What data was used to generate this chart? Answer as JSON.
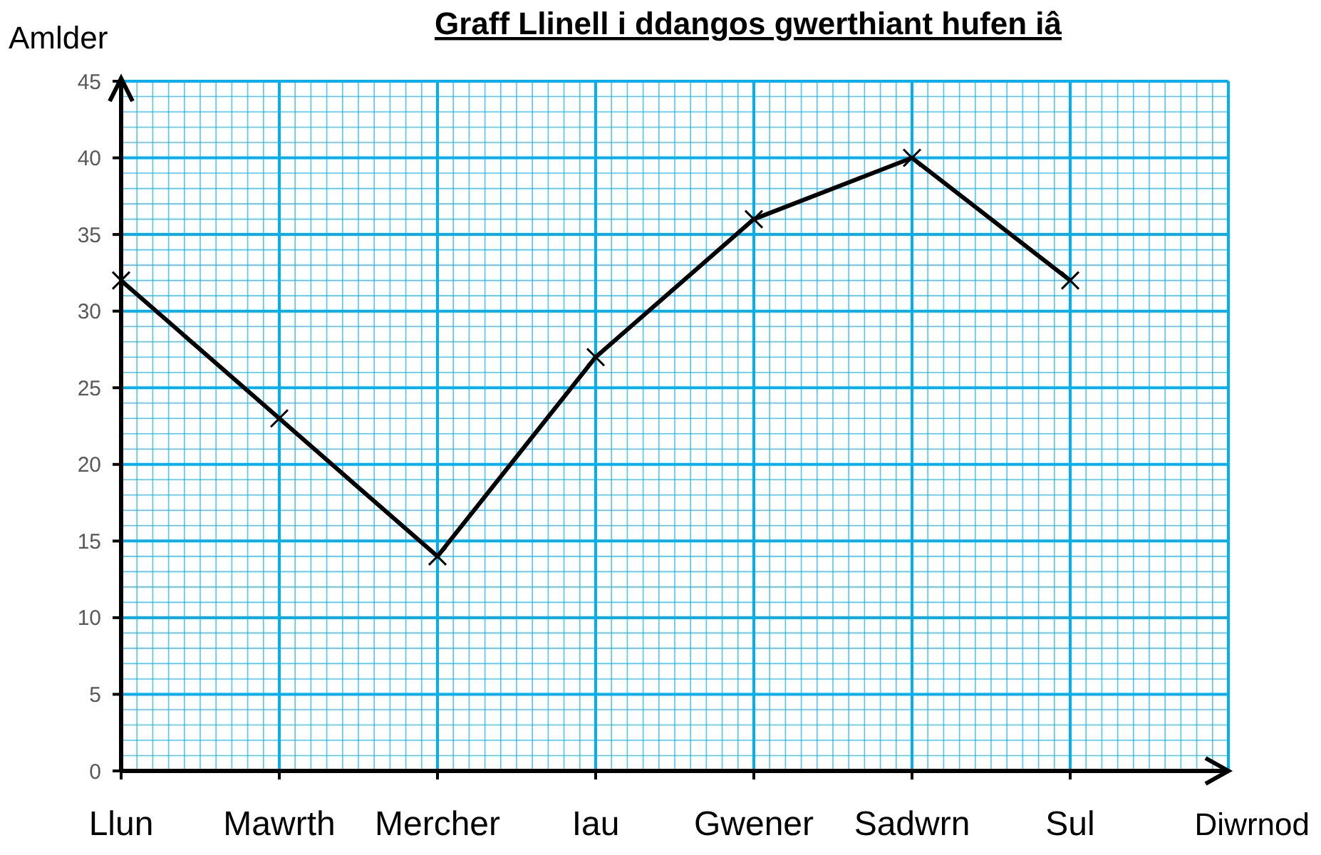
{
  "chart_data": {
    "type": "line",
    "title": "Graff Llinell i ddangos gwerthiant hufen iâ",
    "xlabel": "Diwrnod",
    "ylabel": "Amlder",
    "categories": [
      "Llun",
      "Mawrth",
      "Mercher",
      "Iau",
      "Gwener",
      "Sadwrn",
      "Sul"
    ],
    "series": [
      {
        "color": "#000000",
        "values": [
          32,
          23,
          14,
          27,
          36,
          40,
          32
        ]
      }
    ],
    "ylim": [
      0,
      45
    ],
    "yticks": [
      0,
      5,
      10,
      15,
      20,
      25,
      30,
      35,
      40,
      45
    ],
    "grid": true,
    "marker": "cross",
    "line_style": "solid"
  }
}
